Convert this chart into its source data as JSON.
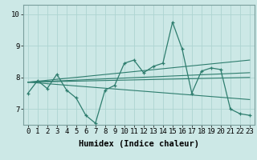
{
  "x": [
    0,
    1,
    2,
    3,
    4,
    5,
    6,
    7,
    8,
    9,
    10,
    11,
    12,
    13,
    14,
    15,
    16,
    17,
    18,
    19,
    20,
    21,
    22,
    23
  ],
  "y_main": [
    7.5,
    7.9,
    7.65,
    8.1,
    7.6,
    7.35,
    6.8,
    6.55,
    7.6,
    7.75,
    8.45,
    8.55,
    8.15,
    8.35,
    8.45,
    9.75,
    8.9,
    7.5,
    8.2,
    8.3,
    8.25,
    7.0,
    6.85,
    6.8
  ],
  "trend1_x": [
    0,
    23
  ],
  "trend1_y": [
    7.85,
    7.3
  ],
  "trend2_x": [
    0,
    23
  ],
  "trend2_y": [
    7.85,
    8.55
  ],
  "trend3_x": [
    0,
    23
  ],
  "trend3_y": [
    7.85,
    8.15
  ],
  "trend4_x": [
    0,
    23
  ],
  "trend4_y": [
    7.85,
    8.0
  ],
  "ylim": [
    6.5,
    10.3
  ],
  "xlim": [
    -0.5,
    23.5
  ],
  "yticks": [
    7,
    8,
    9,
    10
  ],
  "xticks": [
    0,
    1,
    2,
    3,
    4,
    5,
    6,
    7,
    8,
    9,
    10,
    11,
    12,
    13,
    14,
    15,
    16,
    17,
    18,
    19,
    20,
    21,
    22,
    23
  ],
  "xlabel": "Humidex (Indice chaleur)",
  "line_color": "#2e7d6e",
  "bg_color": "#cce8e6",
  "grid_color": "#aed4d1",
  "tick_fontsize": 6.5,
  "label_fontsize": 7.5
}
